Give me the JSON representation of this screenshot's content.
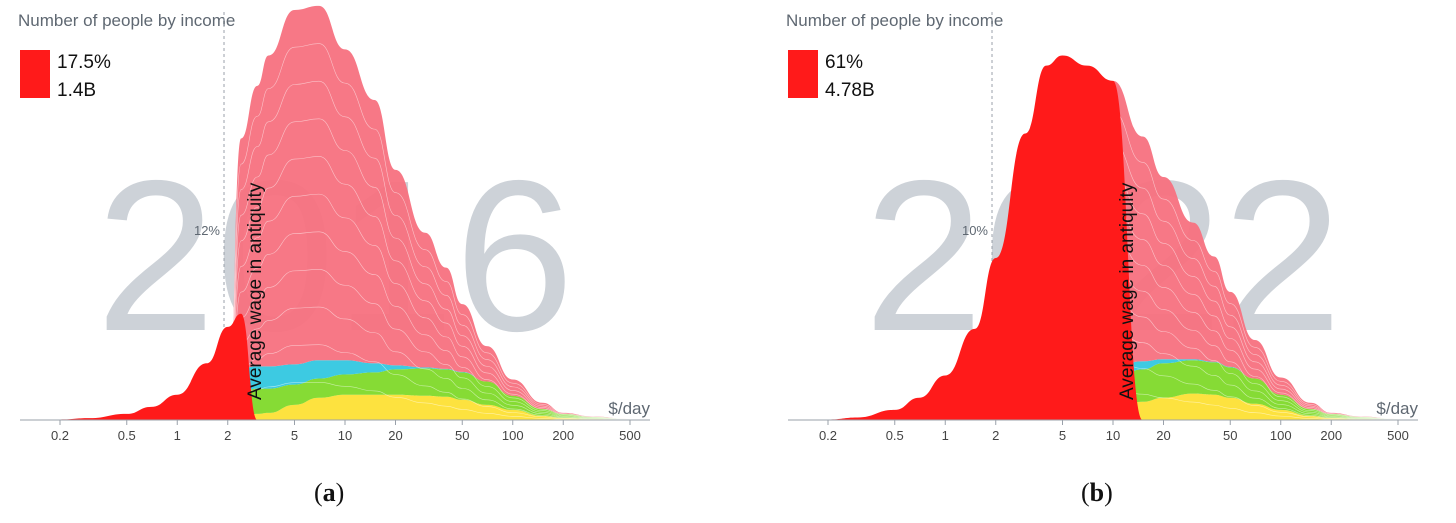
{
  "colors": {
    "below": "#ff1a1a",
    "asia": "#f7717f",
    "africa": "#33c7e0",
    "america": "#7fd92a",
    "europe": "#fde035",
    "year": "#cdd2d8",
    "axis": "#9aa1aa",
    "text": "#5f6872"
  },
  "panels": [
    {
      "caption_letter": "a",
      "chart_data": {
        "type": "area",
        "title": "Number of people by income",
        "xlabel": "$/day",
        "x_scale": "log",
        "x_ticks": [
          "0.2",
          "0.5",
          "1",
          "2",
          "5",
          "10",
          "20",
          "50",
          "100",
          "200",
          "500"
        ],
        "watermark": "2016",
        "legend_share": "17.5%",
        "legend_count": "1.4B",
        "line_label": "Average wage in antiquity",
        "line_x": 2.4,
        "poverty_line_x": 1.9,
        "poverty_line_label": "12%",
        "x": [
          0.2,
          0.3,
          0.5,
          0.7,
          1,
          1.5,
          2,
          2.4,
          3,
          3.5,
          5,
          7,
          10,
          15,
          20,
          30,
          40,
          50,
          70,
          100,
          150,
          200,
          300,
          500
        ],
        "series": [
          {
            "values": [
              0.0,
              0.0,
              0.0,
              0.0,
              0.0,
              0.0,
              0.0,
              3,
              6,
              7,
              15,
              22,
              25,
              25,
              25,
              24,
              23,
              20,
              15,
              10,
              4,
              2,
              1,
              0.5
            ]
          },
          {
            "values": [
              0.0,
              0.0,
              0.0,
              0.0,
              0.0,
              0.0,
              0.0,
              25,
              25,
              24,
              20,
              19,
              20,
              22,
              25,
              27,
              27,
              27,
              23,
              14,
              7,
              4,
              2,
              0.5
            ]
          },
          {
            "values": [
              0.0,
              0.0,
              0.0,
              0.0,
              0.0,
              0.0,
              0.0,
              23,
              22,
              22,
              20,
              18,
              14,
              9,
              4,
              1,
              0.5,
              0.5,
              0.0,
              0.0,
              0.0,
              0.0,
              0.0,
              0.0
            ]
          },
          {
            "values": [
              0.0,
              0.0,
              0.0,
              0.0,
              0.0,
              0.0,
              0.0,
              227,
              277,
              307,
              350,
              350,
              307,
              260,
              193,
              133,
              100,
              67,
              35,
              16,
              6,
              1,
              0.5,
              0.0
            ]
          }
        ],
        "below_values": [
          0.5,
          1.8,
          6,
          13,
          25,
          56,
          92,
          105,
          0.0,
          0.0,
          0.0,
          0.0,
          0.0,
          0.0,
          0.0,
          0.0,
          0.0,
          0.0,
          0.0,
          0.0,
          0.0,
          0.0,
          0.0,
          0.0
        ]
      }
    },
    {
      "caption_letter": "b",
      "chart_data": {
        "type": "area",
        "title": "Number of people by income",
        "xlabel": "$/day",
        "x_scale": "log",
        "x_ticks": [
          "0.2",
          "0.5",
          "1",
          "2",
          "5",
          "10",
          "20",
          "50",
          "100",
          "200",
          "500"
        ],
        "watermark": "2022",
        "legend_share": "61%",
        "legend_count": "4.78B",
        "line_label": "Average wage in antiquity",
        "line_x": 10,
        "poverty_line_x": 1.9,
        "poverty_line_label": "10%",
        "x": [
          0.2,
          0.3,
          0.5,
          0.7,
          1,
          1.5,
          2,
          3,
          4,
          5,
          7,
          10,
          15,
          20,
          30,
          40,
          50,
          70,
          100,
          150,
          200,
          300,
          500
        ],
        "series": [
          {
            "values": [
              0.0,
              0.0,
              0.0,
              0.0,
              0.0,
              0.0,
              0.0,
              0.0,
              0.0,
              0.0,
              0.0,
              12,
              18,
              22,
              26,
              25,
              22,
              16,
              10,
              4,
              2,
              1,
              0.5
            ]
          },
          {
            "values": [
              0.0,
              0.0,
              0.0,
              0.0,
              0.0,
              0.0,
              0.0,
              0.0,
              0.0,
              0.0,
              0.0,
              28,
              32,
              34,
              33,
              32,
              30,
              25,
              15,
              7,
              4,
              2,
              0.5
            ]
          },
          {
            "values": [
              0.0,
              0.0,
              0.0,
              0.0,
              0.0,
              0.0,
              0.0,
              0.0,
              0.0,
              0.0,
              0.0,
              12,
              8,
              4,
              1,
              0.5,
              0.5,
              0.0,
              0.0,
              0.0,
              0.0,
              0.0,
              0.0
            ]
          },
          {
            "values": [
              0.0,
              0.0,
              0.0,
              0.0,
              0.0,
              0.0,
              0.0,
              0.0,
              0.0,
              0.0,
              0.0,
              283,
              222,
              180,
              135,
              104,
              74,
              38,
              17,
              6,
              1,
              0.5,
              0.0
            ]
          }
        ],
        "below_values": [
          0.5,
          2.5,
          10,
          22,
          44,
          90,
          160,
          283,
          350,
          360,
          350,
          335,
          0.0,
          0.0,
          0.0,
          0.0,
          0.0,
          0.0,
          0.0,
          0.0,
          0.0,
          0.0,
          0.0
        ]
      }
    }
  ]
}
